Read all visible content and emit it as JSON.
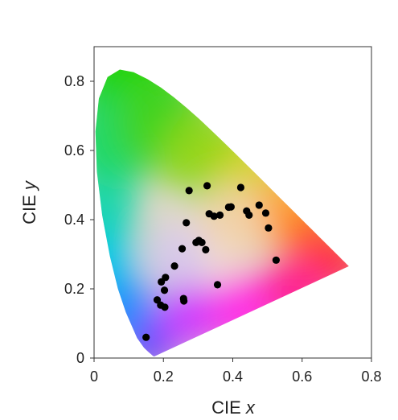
{
  "chart_data": {
    "type": "scatter",
    "title": "",
    "xlabel": "CIE",
    "xlabel_var": "x",
    "ylabel": "CIE",
    "ylabel_var": "y",
    "xlim": [
      0,
      0.8
    ],
    "ylim": [
      0,
      0.9
    ],
    "x_ticks": [
      0,
      0.2,
      0.4,
      0.6,
      0.8
    ],
    "x_tick_labels": [
      "0",
      "0.2",
      "0.4",
      "0.6",
      "0.8"
    ],
    "y_ticks": [
      0,
      0.2,
      0.4,
      0.6,
      0.8
    ],
    "y_tick_labels": [
      "0",
      "0.2",
      "0.4",
      "0.6",
      "0.8"
    ],
    "grid": false,
    "background": "CIE 1931 chromaticity diagram (spectral locus)",
    "point_color": "#000000",
    "points": [
      {
        "x": 0.15,
        "y": 0.06
      },
      {
        "x": 0.182,
        "y": 0.168
      },
      {
        "x": 0.192,
        "y": 0.153
      },
      {
        "x": 0.204,
        "y": 0.147
      },
      {
        "x": 0.194,
        "y": 0.22
      },
      {
        "x": 0.206,
        "y": 0.233
      },
      {
        "x": 0.203,
        "y": 0.196
      },
      {
        "x": 0.232,
        "y": 0.266
      },
      {
        "x": 0.254,
        "y": 0.316
      },
      {
        "x": 0.258,
        "y": 0.172
      },
      {
        "x": 0.259,
        "y": 0.165
      },
      {
        "x": 0.266,
        "y": 0.391
      },
      {
        "x": 0.274,
        "y": 0.484
      },
      {
        "x": 0.294,
        "y": 0.334
      },
      {
        "x": 0.302,
        "y": 0.34
      },
      {
        "x": 0.311,
        "y": 0.334
      },
      {
        "x": 0.322,
        "y": 0.313
      },
      {
        "x": 0.326,
        "y": 0.498
      },
      {
        "x": 0.332,
        "y": 0.417
      },
      {
        "x": 0.346,
        "y": 0.41
      },
      {
        "x": 0.356,
        "y": 0.212
      },
      {
        "x": 0.363,
        "y": 0.413
      },
      {
        "x": 0.388,
        "y": 0.436
      },
      {
        "x": 0.395,
        "y": 0.437
      },
      {
        "x": 0.423,
        "y": 0.493
      },
      {
        "x": 0.44,
        "y": 0.425
      },
      {
        "x": 0.447,
        "y": 0.413
      },
      {
        "x": 0.476,
        "y": 0.442
      },
      {
        "x": 0.495,
        "y": 0.419
      },
      {
        "x": 0.503,
        "y": 0.376
      },
      {
        "x": 0.525,
        "y": 0.283
      }
    ]
  }
}
